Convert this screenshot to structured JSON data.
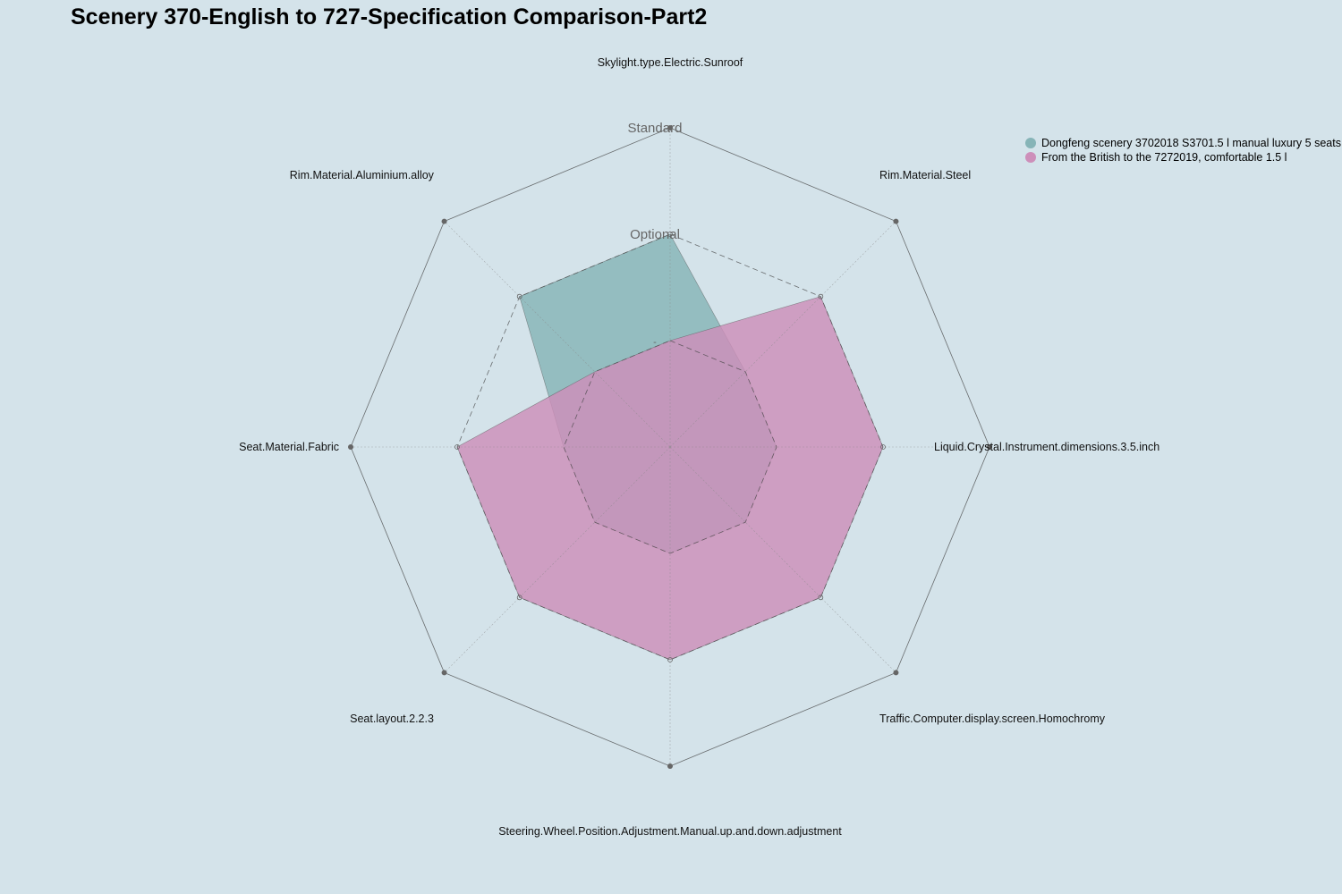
{
  "chart_data": {
    "type": "radar",
    "title": "Scenery 370-English to 727-Specification Comparison-Part2",
    "axes": [
      "Skylight.type.Electric.Sunroof",
      "Rim.Material.Steel",
      "Liquid.Crystal.Instrument.dimensions.3.5.inch",
      "Traffic.Computer.display.screen.Homochromy",
      "Steering.Wheel.Position.Adjustment.Manual.up.and.down.adjustment",
      "Seat.layout.2.2.3",
      "Seat.Material.Fabric",
      "Rim.Material.Aluminium.alloy"
    ],
    "levels": [
      "-",
      "Optional",
      "Standard"
    ],
    "series": [
      {
        "name": "Dongfeng scenery 3702018 S3701.5 l manual luxury 5 seats",
        "color": "#86b4b7",
        "values": [
          1,
          0,
          0,
          0,
          0,
          0,
          0,
          1
        ]
      },
      {
        "name": "From the British to the 7272019, comfortable 1.5 l",
        "color": "#cd8fba",
        "values": [
          0,
          1,
          1,
          1,
          1,
          1,
          1,
          0
        ]
      }
    ],
    "legend_position": "top-right"
  }
}
